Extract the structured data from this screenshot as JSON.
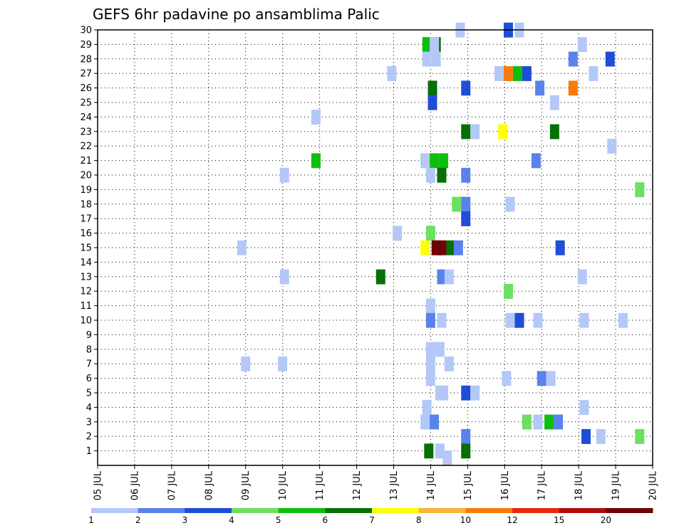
{
  "chart_data": {
    "type": "heatmap",
    "title": "GEFS 6hr padavine po ansamblima Palic",
    "xlabel": "",
    "ylabel": "",
    "x_categories": [
      "05 JUL",
      "06 JUL",
      "07 JUL",
      "08 JUL",
      "09 JUL",
      "10 JUL",
      "11 JUL",
      "12 JUL",
      "13 JUL",
      "14 JUL",
      "15 JUL",
      "16 JUL",
      "17 JUL",
      "18 JUL",
      "19 JUL",
      "20 JUL"
    ],
    "x_range": [
      0,
      15
    ],
    "y_range": [
      0,
      30
    ],
    "y_ticks": [
      1,
      2,
      3,
      4,
      5,
      6,
      7,
      8,
      9,
      10,
      11,
      12,
      13,
      14,
      15,
      16,
      17,
      18,
      19,
      20,
      21,
      22,
      23,
      24,
      25,
      26,
      27,
      28,
      29,
      30
    ],
    "grid": true,
    "colorbar": {
      "placement": "bottom",
      "labels": [
        "1",
        "2",
        "3",
        "4",
        "5",
        "6",
        "7",
        "8",
        "10",
        "12",
        "15",
        "20"
      ],
      "colors": [
        "#b4c8f8",
        "#5a82ec",
        "#1e4ed6",
        "#6ce060",
        "#0ebe0e",
        "#067006",
        "#ffff0a",
        "#f8b43c",
        "#f87c0a",
        "#e82a0a",
        "#b00c0c",
        "#6e0404"
      ]
    },
    "cells": [
      {
        "day": 8.9,
        "member": 29,
        "v": 5
      },
      {
        "day": 9.15,
        "member": 29,
        "v": 6
      },
      {
        "day": 8.9,
        "member": 28,
        "v": 1
      },
      {
        "day": 9.15,
        "member": 28,
        "v": 1
      },
      {
        "day": 9.25,
        "member": 1,
        "v": 1
      },
      {
        "day": 9.45,
        "member": -1,
        "v": 1
      },
      {
        "day": 9.1,
        "member": 29,
        "v": 1
      },
      {
        "day": 9.8,
        "member": 30,
        "v": 1
      },
      {
        "day": 11.1,
        "member": 30,
        "v": 3
      },
      {
        "day": 11.4,
        "member": 30,
        "v": 1
      },
      {
        "day": 9.1,
        "member": 29,
        "v": 1
      },
      {
        "day": 13.1,
        "member": 29,
        "v": 1
      },
      {
        "day": 12.85,
        "member": 28,
        "v": 2
      },
      {
        "day": 13.85,
        "member": 28,
        "v": 3
      },
      {
        "day": 7.95,
        "member": 27,
        "v": 1
      },
      {
        "day": 10.85,
        "member": 27,
        "v": 1
      },
      {
        "day": 11.1,
        "member": 27,
        "v": 9
      },
      {
        "day": 11.35,
        "member": 27,
        "v": 5
      },
      {
        "day": 11.6,
        "member": 27,
        "v": 3
      },
      {
        "day": 13.4,
        "member": 27,
        "v": 1
      },
      {
        "day": 9.05,
        "member": 26,
        "v": 6
      },
      {
        "day": 9.95,
        "member": 26,
        "v": 3
      },
      {
        "day": 11.95,
        "member": 26,
        "v": 2
      },
      {
        "day": 12.85,
        "member": 26,
        "v": 9
      },
      {
        "day": 9.05,
        "member": 25,
        "v": 3
      },
      {
        "day": 12.35,
        "member": 25,
        "v": 1
      },
      {
        "day": 5.9,
        "member": 24,
        "v": 1
      },
      {
        "day": 9.95,
        "member": 23,
        "v": 6
      },
      {
        "day": 10.2,
        "member": 23,
        "v": 1
      },
      {
        "day": 10.95,
        "member": 23,
        "v": 7
      },
      {
        "day": 12.35,
        "member": 23,
        "v": 6
      },
      {
        "day": 13.9,
        "member": 22,
        "v": 1
      },
      {
        "day": 5.9,
        "member": 21,
        "v": 5
      },
      {
        "day": 8.85,
        "member": 21,
        "v": 1
      },
      {
        "day": 9.1,
        "member": 21,
        "v": 5
      },
      {
        "day": 9.35,
        "member": 21,
        "v": 5
      },
      {
        "day": 11.85,
        "member": 21,
        "v": 2
      },
      {
        "day": 5.05,
        "member": 20,
        "v": 1
      },
      {
        "day": 9.0,
        "member": 20,
        "v": 1
      },
      {
        "day": 9.3,
        "member": 20,
        "v": 6
      },
      {
        "day": 9.95,
        "member": 20,
        "v": 2
      },
      {
        "day": 14.65,
        "member": 19,
        "v": 4
      },
      {
        "day": 9.7,
        "member": 18,
        "v": 4
      },
      {
        "day": 9.95,
        "member": 18,
        "v": 2
      },
      {
        "day": 11.15,
        "member": 18,
        "v": 1
      },
      {
        "day": 9.95,
        "member": 17,
        "v": 3
      },
      {
        "day": 8.1,
        "member": 16,
        "v": 1
      },
      {
        "day": 9.0,
        "member": 16,
        "v": 4
      },
      {
        "day": 3.9,
        "member": 15,
        "v": 1
      },
      {
        "day": 8.85,
        "member": 15,
        "v": 7
      },
      {
        "day": 9.15,
        "member": 15,
        "v": 12
      },
      {
        "day": 9.3,
        "member": 15,
        "v": 12
      },
      {
        "day": 9.55,
        "member": 15,
        "v": 6
      },
      {
        "day": 9.75,
        "member": 15,
        "v": 2
      },
      {
        "day": 12.5,
        "member": 15,
        "v": 3
      },
      {
        "day": 5.05,
        "member": 13,
        "v": 1
      },
      {
        "day": 7.65,
        "member": 13,
        "v": 6
      },
      {
        "day": 9.3,
        "member": 13,
        "v": 2
      },
      {
        "day": 9.5,
        "member": 13,
        "v": 1
      },
      {
        "day": 13.1,
        "member": 13,
        "v": 1
      },
      {
        "day": 11.1,
        "member": 12,
        "v": 4
      },
      {
        "day": 9.0,
        "member": 11,
        "v": 1
      },
      {
        "day": 9.0,
        "member": 10,
        "v": 2
      },
      {
        "day": 9.3,
        "member": 10,
        "v": 1
      },
      {
        "day": 11.15,
        "member": 10,
        "v": 1
      },
      {
        "day": 11.4,
        "member": 10,
        "v": 3
      },
      {
        "day": 11.9,
        "member": 10,
        "v": 1
      },
      {
        "day": 13.15,
        "member": 10,
        "v": 1
      },
      {
        "day": 14.2,
        "member": 10,
        "v": 1
      },
      {
        "day": 9.0,
        "member": 8,
        "v": 1
      },
      {
        "day": 9.25,
        "member": 8,
        "v": 1
      },
      {
        "day": 9.0,
        "member": 7,
        "v": 1
      },
      {
        "day": 4.0,
        "member": 7,
        "v": 1
      },
      {
        "day": 5.0,
        "member": 7,
        "v": 1
      },
      {
        "day": 9.5,
        "member": 7,
        "v": 1
      },
      {
        "day": 9.0,
        "member": 6,
        "v": 1
      },
      {
        "day": 11.05,
        "member": 6,
        "v": 1
      },
      {
        "day": 12.0,
        "member": 6,
        "v": 2
      },
      {
        "day": 12.25,
        "member": 6,
        "v": 1
      },
      {
        "day": 9.35,
        "member": 5,
        "v": 1
      },
      {
        "day": 9.25,
        "member": 5,
        "v": 1
      },
      {
        "day": 9.95,
        "member": 5,
        "v": 3
      },
      {
        "day": 10.2,
        "member": 5,
        "v": 1
      },
      {
        "day": 8.9,
        "member": 4,
        "v": 1
      },
      {
        "day": 13.15,
        "member": 4,
        "v": 1
      },
      {
        "day": 8.85,
        "member": 3,
        "v": 1
      },
      {
        "day": 9.1,
        "member": 3,
        "v": 2
      },
      {
        "day": 11.6,
        "member": 3,
        "v": 4
      },
      {
        "day": 11.9,
        "member": 3,
        "v": 1
      },
      {
        "day": 12.2,
        "member": 3,
        "v": 5
      },
      {
        "day": 12.45,
        "member": 3,
        "v": 2
      },
      {
        "day": 9.95,
        "member": 2,
        "v": 2
      },
      {
        "day": 13.2,
        "member": 2,
        "v": 3
      },
      {
        "day": 13.6,
        "member": 2,
        "v": 1
      },
      {
        "day": 14.65,
        "member": 2,
        "v": 4
      },
      {
        "day": 8.95,
        "member": 1,
        "v": 6
      },
      {
        "day": 9.25,
        "member": 1,
        "v": 1
      },
      {
        "day": 9.95,
        "member": 1,
        "v": 6
      }
    ]
  }
}
